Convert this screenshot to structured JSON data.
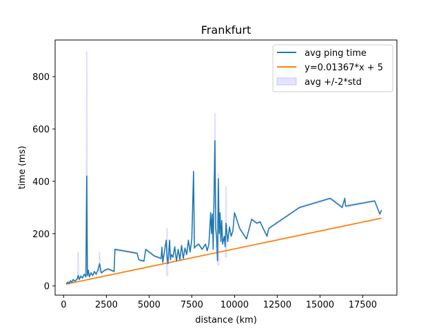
{
  "chart_data": {
    "type": "line",
    "title": "Frankfurt",
    "xlabel": "distance (km)",
    "ylabel": "time (ms)",
    "xlim": [
      -500,
      19500
    ],
    "ylim": [
      -35,
      940
    ],
    "xticks": [
      0,
      2500,
      5000,
      7500,
      10000,
      12500,
      15000,
      17500
    ],
    "yticks": [
      0,
      200,
      400,
      600,
      800
    ],
    "grid": false,
    "legend_position": "top-right",
    "colors": {
      "avg": "#1f77b4",
      "fit": "#ff7f0e",
      "band": "#0000ff"
    },
    "series": [
      {
        "name": "avg ping time",
        "kind": "line",
        "points": [
          [
            150,
            8
          ],
          [
            250,
            15
          ],
          [
            320,
            10
          ],
          [
            400,
            20
          ],
          [
            480,
            14
          ],
          [
            560,
            25
          ],
          [
            650,
            18
          ],
          [
            720,
            22
          ],
          [
            800,
            28
          ],
          [
            850,
            40
          ],
          [
            920,
            25
          ],
          [
            1000,
            38
          ],
          [
            1100,
            30
          ],
          [
            1200,
            45
          ],
          [
            1300,
            35
          ],
          [
            1350,
            420
          ],
          [
            1390,
            40
          ],
          [
            1450,
            60
          ],
          [
            1500,
            35
          ],
          [
            1600,
            50
          ],
          [
            1700,
            40
          ],
          [
            1800,
            55
          ],
          [
            1900,
            45
          ],
          [
            2000,
            60
          ],
          [
            2100,
            85
          ],
          [
            2200,
            50
          ],
          [
            2400,
            60
          ],
          [
            2600,
            65
          ],
          [
            2800,
            60
          ],
          [
            2950,
            55
          ],
          [
            3000,
            140
          ],
          [
            4300,
            125
          ],
          [
            4400,
            100
          ],
          [
            4700,
            95
          ],
          [
            4800,
            140
          ],
          [
            5300,
            115
          ],
          [
            5700,
            105
          ],
          [
            5750,
            148
          ],
          [
            5800,
            90
          ],
          [
            6000,
            175
          ],
          [
            6050,
            110
          ],
          [
            6100,
            85
          ],
          [
            6200,
            175
          ],
          [
            6250,
            100
          ],
          [
            6300,
            120
          ],
          [
            6400,
            110
          ],
          [
            6500,
            150
          ],
          [
            6600,
            95
          ],
          [
            6700,
            140
          ],
          [
            6800,
            100
          ],
          [
            6900,
            155
          ],
          [
            7000,
            105
          ],
          [
            7100,
            145
          ],
          [
            7200,
            120
          ],
          [
            7300,
            175
          ],
          [
            7400,
            130
          ],
          [
            7500,
            180
          ],
          [
            7600,
            438
          ],
          [
            7650,
            145
          ],
          [
            7700,
            150
          ],
          [
            7900,
            160
          ],
          [
            8100,
            140
          ],
          [
            8300,
            160
          ],
          [
            8400,
            135
          ],
          [
            8500,
            160
          ],
          [
            8600,
            280
          ],
          [
            8650,
            200
          ],
          [
            8700,
            275
          ],
          [
            8750,
            140
          ],
          [
            8850,
            555
          ],
          [
            8900,
            220
          ],
          [
            8950,
            180
          ],
          [
            9000,
            97
          ],
          [
            9050,
            410
          ],
          [
            9100,
            200
          ],
          [
            9150,
            280
          ],
          [
            9200,
            170
          ],
          [
            9250,
            250
          ],
          [
            9300,
            160
          ],
          [
            9400,
            190
          ],
          [
            9450,
            150
          ],
          [
            9500,
            240
          ],
          [
            9600,
            170
          ],
          [
            9700,
            225
          ],
          [
            9800,
            190
          ],
          [
            9900,
            210
          ],
          [
            10000,
            280
          ],
          [
            10300,
            220
          ],
          [
            10700,
            180
          ],
          [
            11000,
            255
          ],
          [
            11300,
            240
          ],
          [
            11500,
            245
          ],
          [
            11600,
            230
          ],
          [
            11900,
            190
          ],
          [
            12000,
            220
          ],
          [
            13800,
            300
          ],
          [
            15600,
            335
          ],
          [
            16300,
            300
          ],
          [
            16450,
            335
          ],
          [
            16500,
            305
          ],
          [
            18200,
            325
          ],
          [
            18500,
            275
          ],
          [
            18600,
            290
          ]
        ]
      },
      {
        "name": "y=0.01367*x + 5",
        "kind": "line",
        "slope": 0.01367,
        "intercept": 5,
        "x_range": [
          150,
          18600
        ]
      },
      {
        "name": "avg +/-2*std",
        "kind": "band",
        "spikes": [
          {
            "x": 850,
            "low": 25,
            "high": 130
          },
          {
            "x": 1350,
            "low": 40,
            "high": 895
          },
          {
            "x": 2100,
            "low": 55,
            "high": 130
          },
          {
            "x": 6050,
            "low": 40,
            "high": 220
          },
          {
            "x": 8850,
            "low": 300,
            "high": 660
          },
          {
            "x": 9050,
            "low": 80,
            "high": 430
          },
          {
            "x": 9500,
            "low": 110,
            "high": 380
          }
        ]
      }
    ]
  }
}
